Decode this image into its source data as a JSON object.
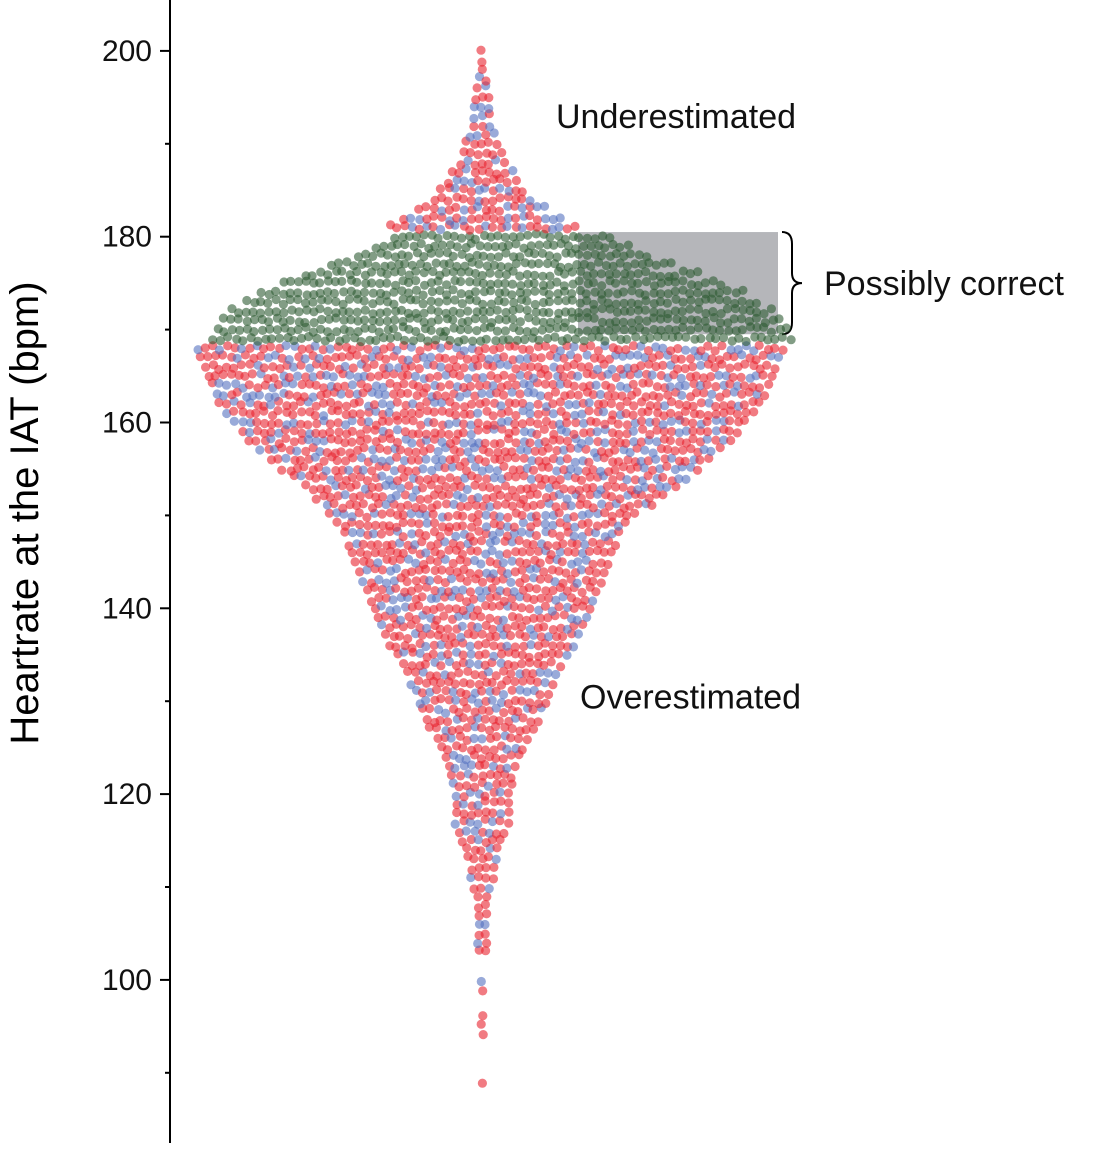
{
  "chart_data": {
    "type": "scatter",
    "subtype": "beeswarm",
    "ylabel": "Heartrate at the IAT (bpm)",
    "xlabel": "",
    "ylim": [
      88,
      204
    ],
    "yticks": [
      100,
      120,
      140,
      160,
      180,
      200
    ],
    "yticks_minor": [
      90,
      110,
      130,
      150,
      170,
      190
    ],
    "grid": false,
    "colors": {
      "red": "#e8232f",
      "blue": "#5572c0",
      "green": "#2f5b33",
      "band": "#b5b6ba"
    },
    "category_rule": {
      "overestimated": "y < 169 (red and blue points)",
      "possibly_correct": "169 <= y <= 180 (green points)",
      "underestimated": "y > 180 (red and blue points)"
    },
    "distribution_points_per_bpm": [
      [
        89,
        1
      ],
      [
        94,
        1
      ],
      [
        95,
        1
      ],
      [
        96,
        1
      ],
      [
        99,
        1
      ],
      [
        100,
        1
      ],
      [
        103,
        2
      ],
      [
        104,
        2
      ],
      [
        106,
        2
      ],
      [
        107,
        2
      ],
      [
        109,
        2
      ],
      [
        110,
        3
      ],
      [
        112,
        4
      ],
      [
        114,
        5
      ],
      [
        116,
        7
      ],
      [
        118,
        8
      ],
      [
        120,
        8
      ],
      [
        122,
        9
      ],
      [
        124,
        11
      ],
      [
        126,
        13
      ],
      [
        128,
        16
      ],
      [
        130,
        18
      ],
      [
        132,
        20
      ],
      [
        134,
        22
      ],
      [
        136,
        26
      ],
      [
        138,
        28
      ],
      [
        140,
        30
      ],
      [
        142,
        32
      ],
      [
        144,
        34
      ],
      [
        146,
        36
      ],
      [
        148,
        38
      ],
      [
        150,
        42
      ],
      [
        152,
        48
      ],
      [
        154,
        54
      ],
      [
        156,
        60
      ],
      [
        158,
        66
      ],
      [
        160,
        70
      ],
      [
        162,
        74
      ],
      [
        164,
        76
      ],
      [
        166,
        78
      ],
      [
        168,
        80
      ],
      [
        170,
        78
      ],
      [
        172,
        74
      ],
      [
        174,
        66
      ],
      [
        176,
        54
      ],
      [
        178,
        40
      ],
      [
        180,
        30
      ],
      [
        182,
        22
      ],
      [
        184,
        14
      ],
      [
        186,
        10
      ],
      [
        188,
        7
      ],
      [
        190,
        5
      ],
      [
        192,
        3
      ],
      [
        194,
        3
      ],
      [
        196,
        2
      ],
      [
        198,
        1
      ],
      [
        199,
        1
      ],
      [
        200,
        1
      ]
    ],
    "highlight_band": {
      "y_range": [
        169.5,
        180.5
      ],
      "label": "Possibly correct"
    },
    "annotations": [
      {
        "text": "Underestimated",
        "y": 193
      },
      {
        "text": "Possibly correct",
        "y": 175
      },
      {
        "text": "Overestimated",
        "y": 130.5
      }
    ]
  }
}
